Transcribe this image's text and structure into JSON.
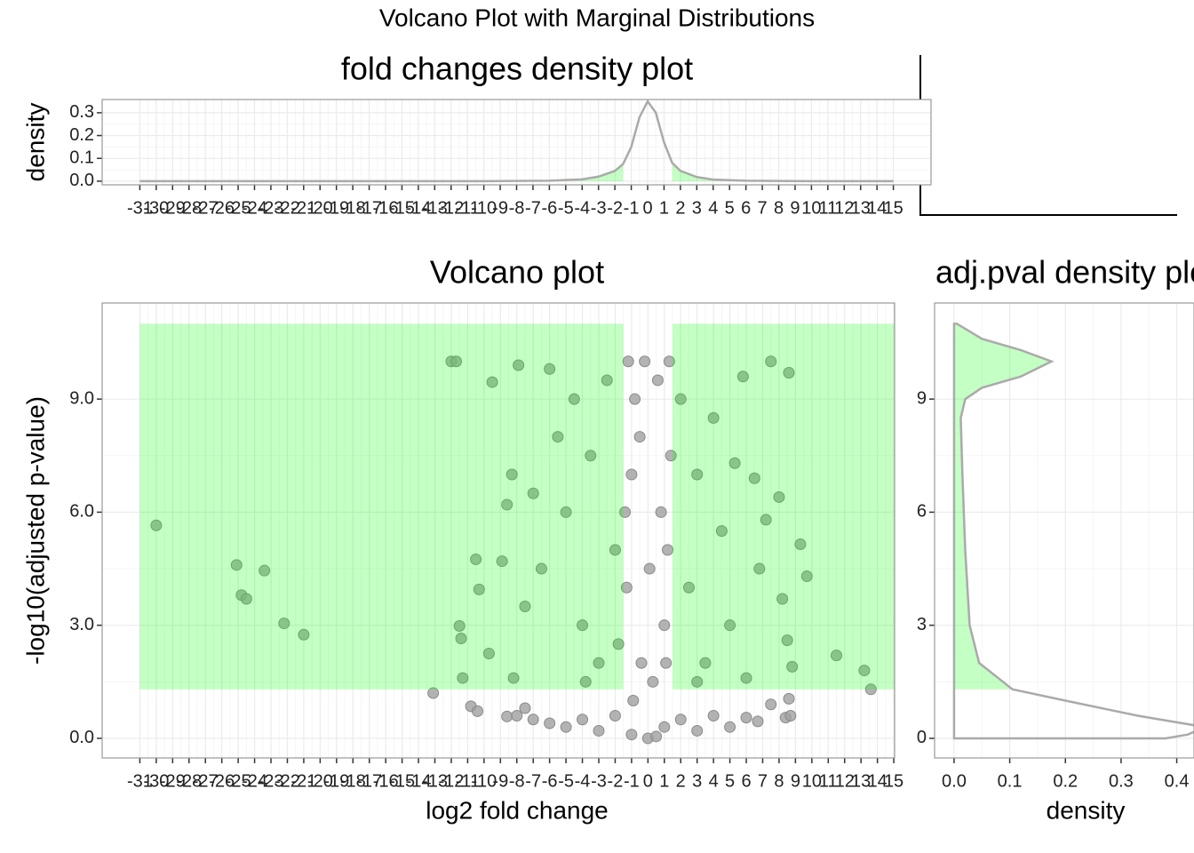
{
  "title": "Volcano Plot with Marginal Distributions",
  "chart_data": [
    {
      "type": "line",
      "orientation": "vertical",
      "title": "fold changes density plot",
      "y_label": "density",
      "x": [
        -31,
        -10,
        -6,
        -4,
        -3,
        -2,
        -1.5,
        -1,
        -0.5,
        0,
        0.5,
        1,
        1.5,
        2,
        3,
        4,
        6,
        10,
        15
      ],
      "values": [
        0,
        0,
        0.002,
        0.008,
        0.02,
        0.045,
        0.075,
        0.15,
        0.28,
        0.35,
        0.3,
        0.17,
        0.08,
        0.045,
        0.018,
        0.007,
        0.002,
        0,
        0
      ],
      "color": "#aaaaaa",
      "highlight_color": "#00ff00",
      "highlight_ranges": [
        [
          -31,
          -1.5
        ],
        [
          1.5,
          15
        ]
      ],
      "xlim": [
        -33.3,
        17.3
      ],
      "ylim": [
        -0.016,
        0.358
      ],
      "xticks": [
        -31,
        -30,
        -29,
        -28,
        -27,
        -26,
        -25,
        -24,
        -23,
        -22,
        -21,
        -20,
        -19,
        -18,
        -17,
        -16,
        -15,
        -14,
        -13,
        -12,
        -11,
        -10,
        -9,
        -8,
        -7,
        -6,
        -5,
        -4,
        -3,
        -2,
        -1,
        0,
        1,
        2,
        3,
        4,
        5,
        6,
        7,
        8,
        9,
        10,
        11,
        12,
        13,
        14,
        15
      ],
      "yticks": [
        {
          "value": 0,
          "label": "0.0"
        },
        {
          "value": 0.1,
          "label": "0.1"
        },
        {
          "value": 0.2,
          "label": "0.2"
        },
        {
          "value": 0.3,
          "label": "0.3"
        }
      ],
      "grid": true
    },
    {
      "type": "scatter",
      "title": "Volcano plot",
      "x_label": "log2 fold change",
      "y_label": "-log10(adjusted p-value)",
      "x": [
        -30,
        -25.1,
        -24.8,
        -24.5,
        -23.4,
        -22.2,
        -21,
        -12,
        -11.7,
        -11.5,
        -11.4,
        -11.3,
        -10.5,
        -10.3,
        -9.5,
        -9.7,
        -8.9,
        -8.6,
        -8.3,
        -8.2,
        -7.9,
        -7.5,
        -7,
        -6.5,
        -6,
        -5.5,
        -5,
        -4.5,
        -4,
        -3.5,
        -3,
        -2.5,
        -2,
        -1.8,
        2,
        2.5,
        3,
        3.5,
        4,
        4.5,
        5,
        5.3,
        5.8,
        6.5,
        6.8,
        7.2,
        7.5,
        8,
        8.2,
        8.6,
        8.5,
        8.8,
        9.3,
        9.7,
        11.5,
        13.2,
        13.6,
        -3.8,
        3,
        6,
        -13.1,
        -10.8,
        -10.4,
        -8.6,
        -8,
        -7.5,
        -7,
        -6,
        -5,
        -4,
        -3,
        -2,
        -1,
        0,
        0.5,
        1,
        2,
        3,
        4,
        5,
        6,
        6.7,
        7.5,
        8.4,
        8.6,
        8.7,
        -1.2,
        -0.8,
        -0.5,
        -1,
        0.8,
        1.2,
        -1.3,
        1,
        -0.4,
        0.3,
        1.3,
        0.6,
        -0.2,
        1.4,
        -1.4,
        0.1,
        1.1,
        -0.9
      ],
      "values": [
        5.65,
        4.6,
        3.8,
        3.7,
        4.45,
        3.05,
        2.75,
        10,
        10,
        2.98,
        2.65,
        1.6,
        4.75,
        3.95,
        9.45,
        2.25,
        4.7,
        6.2,
        7,
        1.6,
        9.9,
        3.5,
        6.5,
        4.5,
        9.8,
        8,
        6,
        9,
        3,
        7.5,
        2,
        9.5,
        5,
        2.5,
        9,
        4,
        7,
        2,
        8.5,
        5.5,
        3,
        7.3,
        9.6,
        6.9,
        4.5,
        5.8,
        10,
        6.4,
        3.7,
        9.7,
        2.6,
        1.9,
        5.15,
        4.3,
        2.2,
        1.8,
        1.3,
        1.5,
        1.5,
        1.6,
        1.2,
        0.85,
        0.72,
        0.58,
        0.6,
        0.8,
        0.5,
        0.4,
        0.3,
        0.5,
        0.2,
        0.6,
        0.1,
        0,
        0.05,
        0.3,
        0.5,
        0.2,
        0.6,
        0.3,
        0.55,
        0.45,
        0.9,
        0.55,
        1.05,
        0.6,
        10,
        9,
        8,
        7,
        6,
        5,
        4,
        3,
        2,
        1.5,
        10,
        9.5,
        10,
        7.5,
        6,
        4.5,
        2,
        1
      ],
      "color": "#a0a0a0",
      "highlight_color": "#00ff00",
      "highlight_regions": [
        {
          "x": [
            -31,
            -1.5
          ],
          "y": [
            1.3,
            11
          ]
        },
        {
          "x": [
            1.5,
            15.05
          ],
          "y": [
            1.3,
            11
          ]
        }
      ],
      "xlim": [
        -33.3,
        15.05
      ],
      "ylim": [
        -0.52,
        11.55
      ],
      "xticks": [
        -31,
        -30,
        -29,
        -28,
        -27,
        -26,
        -25,
        -24,
        -23,
        -22,
        -21,
        -20,
        -19,
        -18,
        -17,
        -16,
        -15,
        -14,
        -13,
        -12,
        -11,
        -10,
        -9,
        -8,
        -7,
        -6,
        -5,
        -4,
        -3,
        -2,
        -1,
        0,
        1,
        2,
        3,
        4,
        5,
        6,
        7,
        8,
        9,
        10,
        11,
        12,
        13,
        14,
        15
      ],
      "yticks": [
        {
          "value": 0,
          "label": "0.0"
        },
        {
          "value": 3,
          "label": "3.0"
        },
        {
          "value": 6,
          "label": "6.0"
        },
        {
          "value": 9,
          "label": "9.0"
        }
      ],
      "grid": true
    },
    {
      "type": "line",
      "orientation": "horizontal",
      "title": "adj.pval density plot",
      "x_label": "density",
      "y": [
        0,
        0,
        0.1,
        0.3,
        0.6,
        1,
        1.3,
        2,
        3,
        5,
        7,
        8.5,
        9,
        9.3,
        9.6,
        10,
        10.3,
        10.6,
        11,
        11
      ],
      "values": [
        0,
        0.38,
        0.42,
        0.45,
        0.33,
        0.2,
        0.105,
        0.045,
        0.028,
        0.02,
        0.015,
        0.012,
        0.02,
        0.05,
        0.12,
        0.175,
        0.12,
        0.05,
        0.005,
        0
      ],
      "color": "#aaaaaa",
      "highlight_color": "#00ff00",
      "highlight_ranges": [
        [
          1.3,
          11
        ]
      ],
      "xlim": [
        -0.035,
        0.431
      ],
      "ylim": [
        -0.52,
        11.55
      ],
      "xticks": [
        {
          "value": 0,
          "label": "0.0"
        },
        {
          "value": 0.1,
          "label": "0.1"
        },
        {
          "value": 0.2,
          "label": "0.2"
        },
        {
          "value": 0.3,
          "label": "0.3"
        },
        {
          "value": 0.4,
          "label": "0.4"
        }
      ],
      "yticks": [
        0,
        3,
        6,
        9
      ],
      "grid": true
    }
  ]
}
